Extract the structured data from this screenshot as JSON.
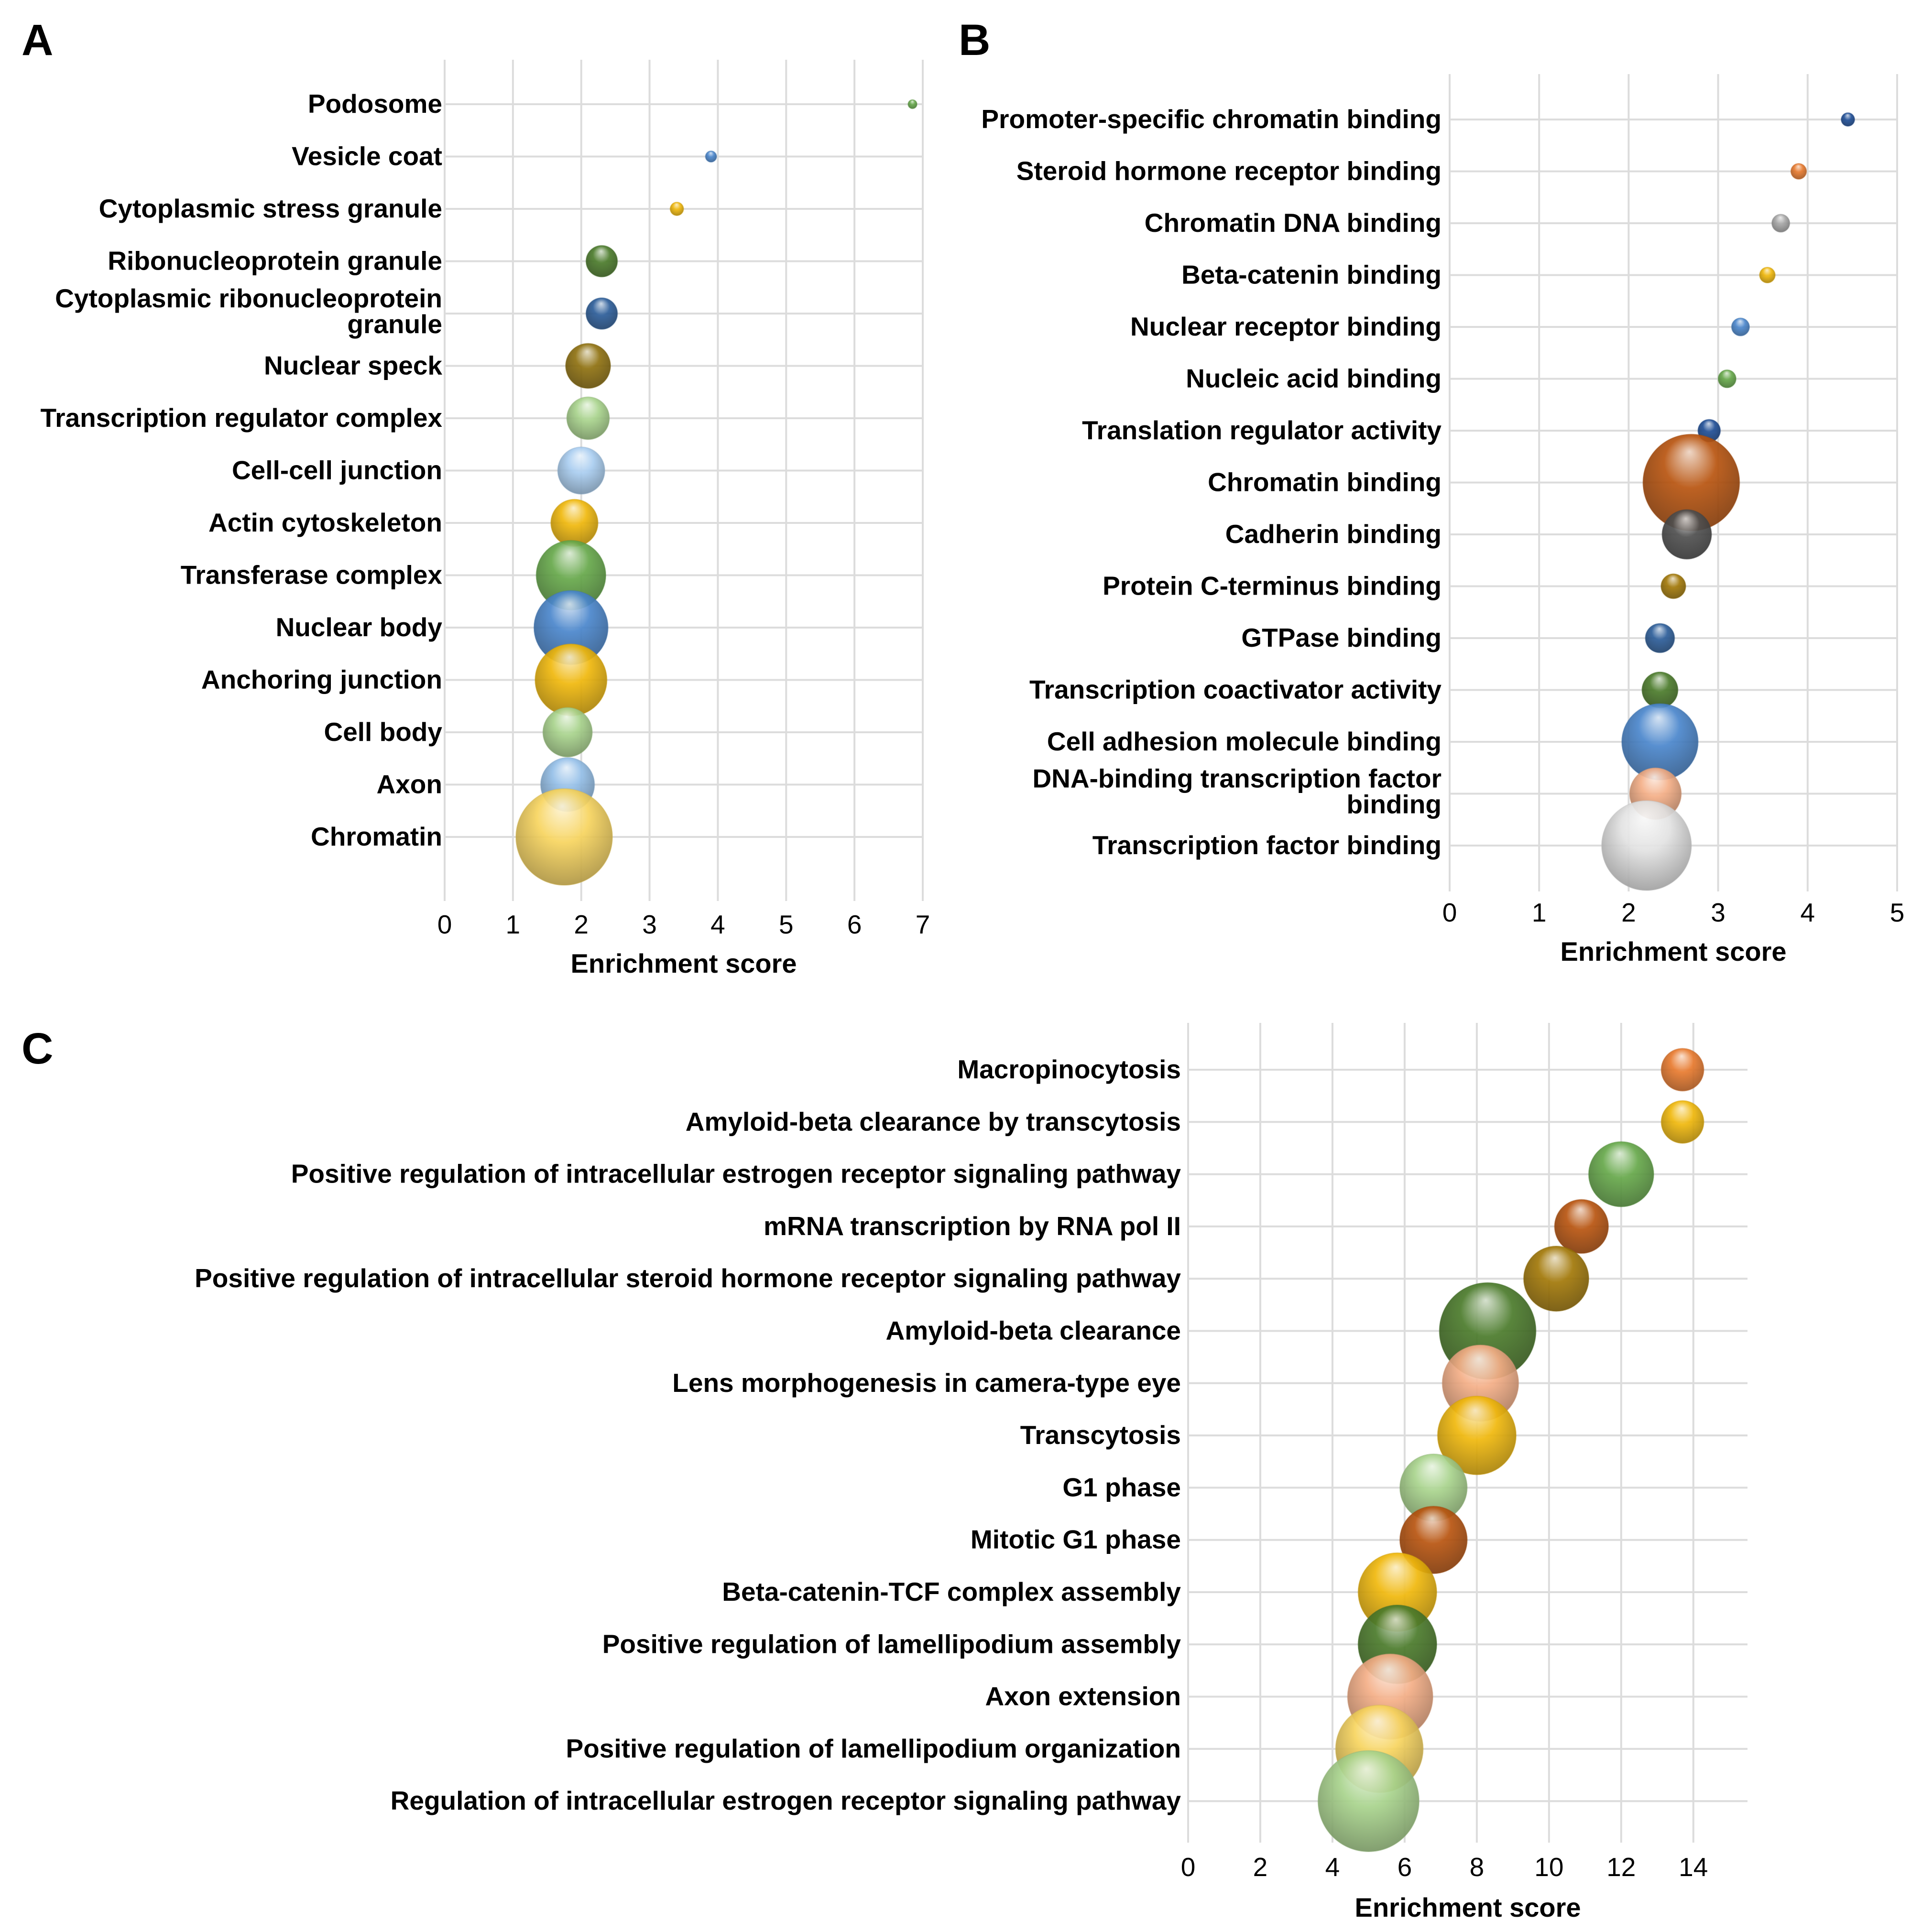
{
  "colors": {
    "orange": "#e87a2e",
    "gray": "#a6a6a6",
    "gold": "#f0b80c",
    "blue": "#4a86cc",
    "green": "#66a84a",
    "darkblue": "#1f4e96",
    "darkorange": "#b8540f",
    "darkgray": "#4f4f4f",
    "darkgold": "#a27808",
    "darkgreen": "#3d6e27",
    "lightblue": "#94bfe8",
    "lightorange": "#f4ae86",
    "lightgray": "#e2e2e2",
    "lightgold": "#f7d45e",
    "lightgreen": "#a8d38c",
    "olive": "#8f7110",
    "navy": "#2c5d99",
    "darkgoldgreen": "#4b7b2b",
    "bluelight": "#a9cdf0"
  },
  "chart_data": [
    {
      "panel": "A",
      "type": "scatter",
      "xlabel": "Enrichment score",
      "xlim": [
        0,
        7
      ],
      "xticks": [
        "0",
        "1",
        "2",
        "3",
        "4",
        "5",
        "6",
        "7"
      ],
      "categories": [
        "Podosome",
        "Vesicle coat",
        "Cytoplasmic stress granule",
        "Ribonucleoprotein granule",
        "Cytoplasmic ribonucleoprotein granule",
        "Nuclear speck",
        "Transcription regulator complex",
        "Cell-cell junction",
        "Actin cytoskeleton",
        "Transferase complex",
        "Nuclear body",
        "Anchoring junction",
        "Cell body",
        "Axon",
        "Chromatin"
      ],
      "label_lines": [
        [
          "Podosome"
        ],
        [
          "Vesicle coat"
        ],
        [
          "Cytoplasmic stress granule"
        ],
        [
          "Ribonucleoprotein granule"
        ],
        [
          "Cytoplasmic ribonucleoprotein",
          "granule"
        ],
        [
          "Nuclear speck"
        ],
        [
          "Transcription regulator complex"
        ],
        [
          "Cell-cell junction"
        ],
        [
          "Actin cytoskeleton"
        ],
        [
          "Transferase complex"
        ],
        [
          "Nuclear body"
        ],
        [
          "Anchoring junction"
        ],
        [
          "Cell body"
        ],
        [
          "Axon"
        ],
        [
          "Chromatin"
        ]
      ],
      "values": [
        6.85,
        3.9,
        3.4,
        2.3,
        2.3,
        2.1,
        2.1,
        2.0,
        1.9,
        1.85,
        1.85,
        1.85,
        1.8,
        1.8,
        1.75
      ],
      "sizes": [
        4,
        5,
        6,
        14,
        14,
        20,
        19,
        21,
        21,
        31,
        33,
        32,
        22,
        24,
        43
      ],
      "bubble_colors": [
        "green",
        "blue",
        "gold",
        "darkgoldgreen",
        "navy",
        "olive",
        "lightgreen",
        "bluelight",
        "gold",
        "green",
        "blue",
        "gold",
        "lightgreen",
        "lightblue",
        "lightgold"
      ]
    },
    {
      "panel": "B",
      "type": "scatter",
      "xlabel": "Enrichment score",
      "xlim": [
        0,
        5
      ],
      "xticks": [
        "0",
        "1",
        "2",
        "3",
        "4",
        "5"
      ],
      "categories": [
        "Promoter-specific chromatin binding",
        "Steroid hormone receptor binding",
        "Chromatin DNA binding",
        "Beta-catenin binding",
        "Nuclear receptor binding",
        "Nucleic acid binding",
        "Translation regulator activity",
        "Chromatin binding",
        "Cadherin binding",
        "Protein C-terminus binding",
        "GTPase binding",
        "Transcription coactivator activity",
        "Cell adhesion molecule binding",
        "DNA-binding transcription factor binding",
        "Transcription factor binding"
      ],
      "label_lines": [
        [
          "Promoter-specific chromatin binding"
        ],
        [
          "Steroid hormone receptor binding"
        ],
        [
          "Chromatin DNA binding"
        ],
        [
          "Beta-catenin binding"
        ],
        [
          "Nuclear receptor binding"
        ],
        [
          "Nucleic acid binding"
        ],
        [
          "Translation regulator activity"
        ],
        [
          "Chromatin binding"
        ],
        [
          "Cadherin binding"
        ],
        [
          "Protein C-terminus binding"
        ],
        [
          "GTPase binding"
        ],
        [
          "Transcription coactivator activity"
        ],
        [
          "Cell adhesion molecule binding"
        ],
        [
          "DNA-binding transcription factor",
          "binding"
        ],
        [
          "Transcription factor binding"
        ]
      ],
      "values": [
        4.45,
        3.9,
        3.7,
        3.55,
        3.25,
        3.1,
        2.9,
        2.7,
        2.65,
        2.5,
        2.35,
        2.35,
        2.35,
        2.3,
        2.2
      ],
      "sizes": [
        6,
        7,
        8,
        7,
        8,
        8,
        10,
        43,
        22,
        11,
        13,
        16,
        34,
        23,
        40
      ],
      "bubble_colors": [
        "darkblue",
        "orange",
        "gray",
        "gold",
        "blue",
        "green",
        "darkblue",
        "darkorange",
        "darkgray",
        "darkgold",
        "navy",
        "darkgoldgreen",
        "blue",
        "lightorange",
        "lightgray"
      ]
    },
    {
      "panel": "C",
      "type": "scatter",
      "xlabel": "Enrichment score",
      "xlim": [
        0,
        15.5
      ],
      "xticks": [
        "0",
        "2",
        "4",
        "6",
        "8",
        "10",
        "12",
        "14"
      ],
      "xtick_values": [
        0,
        2,
        4,
        6,
        8,
        10,
        12,
        14
      ],
      "categories": [
        "Macropinocytosis",
        "Amyloid-beta clearance by transcytosis",
        "Positive regulation of intracellular estrogen receptor signaling pathway",
        "mRNA transcription by RNA pol II",
        "Positive regulation of intracellular steroid hormone receptor signaling pathway",
        "Amyloid-beta clearance",
        "Lens morphogenesis in camera-type eye",
        "Transcytosis",
        "G1 phase",
        "Mitotic G1 phase",
        "Beta-catenin-TCF complex assembly",
        "Positive regulation of lamellipodium assembly",
        "Axon extension",
        "Positive regulation of lamellipodium organization",
        "Regulation of intracellular estrogen receptor signaling pathway"
      ],
      "label_lines": [
        [
          "Macropinocytosis"
        ],
        [
          "Amyloid-beta clearance by transcytosis"
        ],
        [
          "Positive regulation of intracellular estrogen receptor signaling pathway"
        ],
        [
          "mRNA transcription by RNA pol II"
        ],
        [
          "Positive regulation of intracellular steroid hormone receptor signaling pathway"
        ],
        [
          "Amyloid-beta clearance"
        ],
        [
          "Lens morphogenesis in camera-type eye"
        ],
        [
          "Transcytosis"
        ],
        [
          "G1 phase"
        ],
        [
          "Mitotic G1 phase"
        ],
        [
          "Beta-catenin-TCF complex assembly"
        ],
        [
          "Positive regulation of lamellipodium assembly"
        ],
        [
          "Axon extension"
        ],
        [
          "Positive regulation of lamellipodium organization"
        ],
        [
          "Regulation of intracellular estrogen receptor signaling pathway"
        ]
      ],
      "values": [
        13.7,
        13.7,
        12.0,
        10.9,
        10.2,
        8.3,
        8.1,
        8.0,
        6.8,
        6.8,
        5.8,
        5.8,
        5.6,
        5.3,
        5.0
      ],
      "sizes": [
        19,
        19,
        29,
        24,
        29,
        43,
        34,
        35,
        30,
        30,
        35,
        35,
        38,
        39,
        45
      ],
      "bubble_colors": [
        "orange",
        "gold",
        "green",
        "darkorange",
        "darkgold",
        "darkgoldgreen",
        "lightorange",
        "gold",
        "lightgreen",
        "darkorange",
        "gold",
        "darkgoldgreen",
        "lightorange",
        "lightgold",
        "lightgreen"
      ]
    }
  ]
}
